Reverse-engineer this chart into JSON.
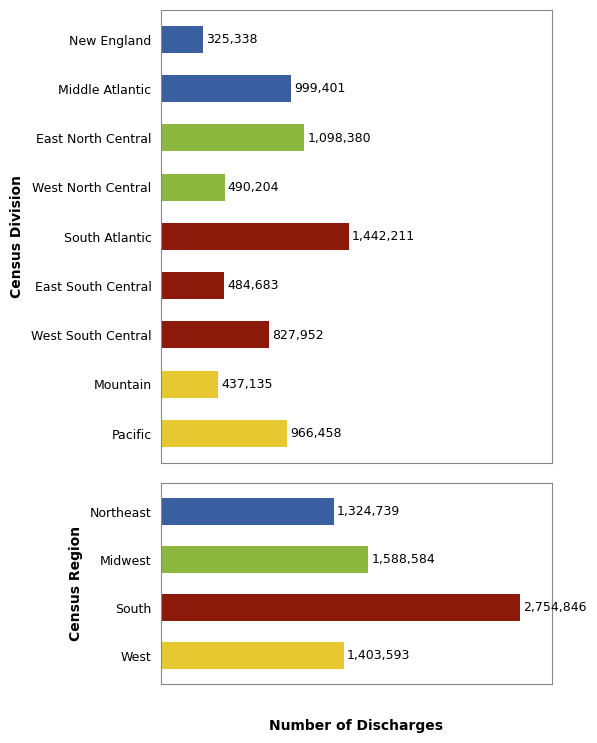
{
  "division_labels": [
    "New England",
    "Middle Atlantic",
    "East North Central",
    "West North Central",
    "South Atlantic",
    "East South Central",
    "West South Central",
    "Mountain",
    "Pacific"
  ],
  "division_values": [
    325338,
    999401,
    1098380,
    490204,
    1442211,
    484683,
    827952,
    437135,
    966458
  ],
  "division_colors": [
    "#3a5fa0",
    "#3a5fa0",
    "#8db840",
    "#8db840",
    "#8b1a0a",
    "#8b1a0a",
    "#8b1a0a",
    "#e8c830",
    "#e8c830"
  ],
  "division_labels_formatted": [
    "325,338",
    "999,401",
    "1,098,380",
    "490,204",
    "1,442,211",
    "484,683",
    "827,952",
    "437,135",
    "966,458"
  ],
  "region_labels": [
    "Northeast",
    "Midwest",
    "South",
    "West"
  ],
  "region_values": [
    1324739,
    1588584,
    2754846,
    1403593
  ],
  "region_colors": [
    "#3a5fa0",
    "#8db840",
    "#8b1a0a",
    "#e8c830"
  ],
  "region_labels_formatted": [
    "1,324,739",
    "1,588,584",
    "2,754,846",
    "1,403,593"
  ],
  "xlabel": "Number of Discharges",
  "division_ylabel": "Census Division",
  "region_ylabel": "Census Region",
  "xlim": [
    0,
    3000000
  ],
  "background_color": "#ffffff",
  "bar_height": 0.55,
  "label_fontsize": 9,
  "axis_label_fontsize": 10,
  "value_fontsize": 9,
  "spine_color": "#888888"
}
